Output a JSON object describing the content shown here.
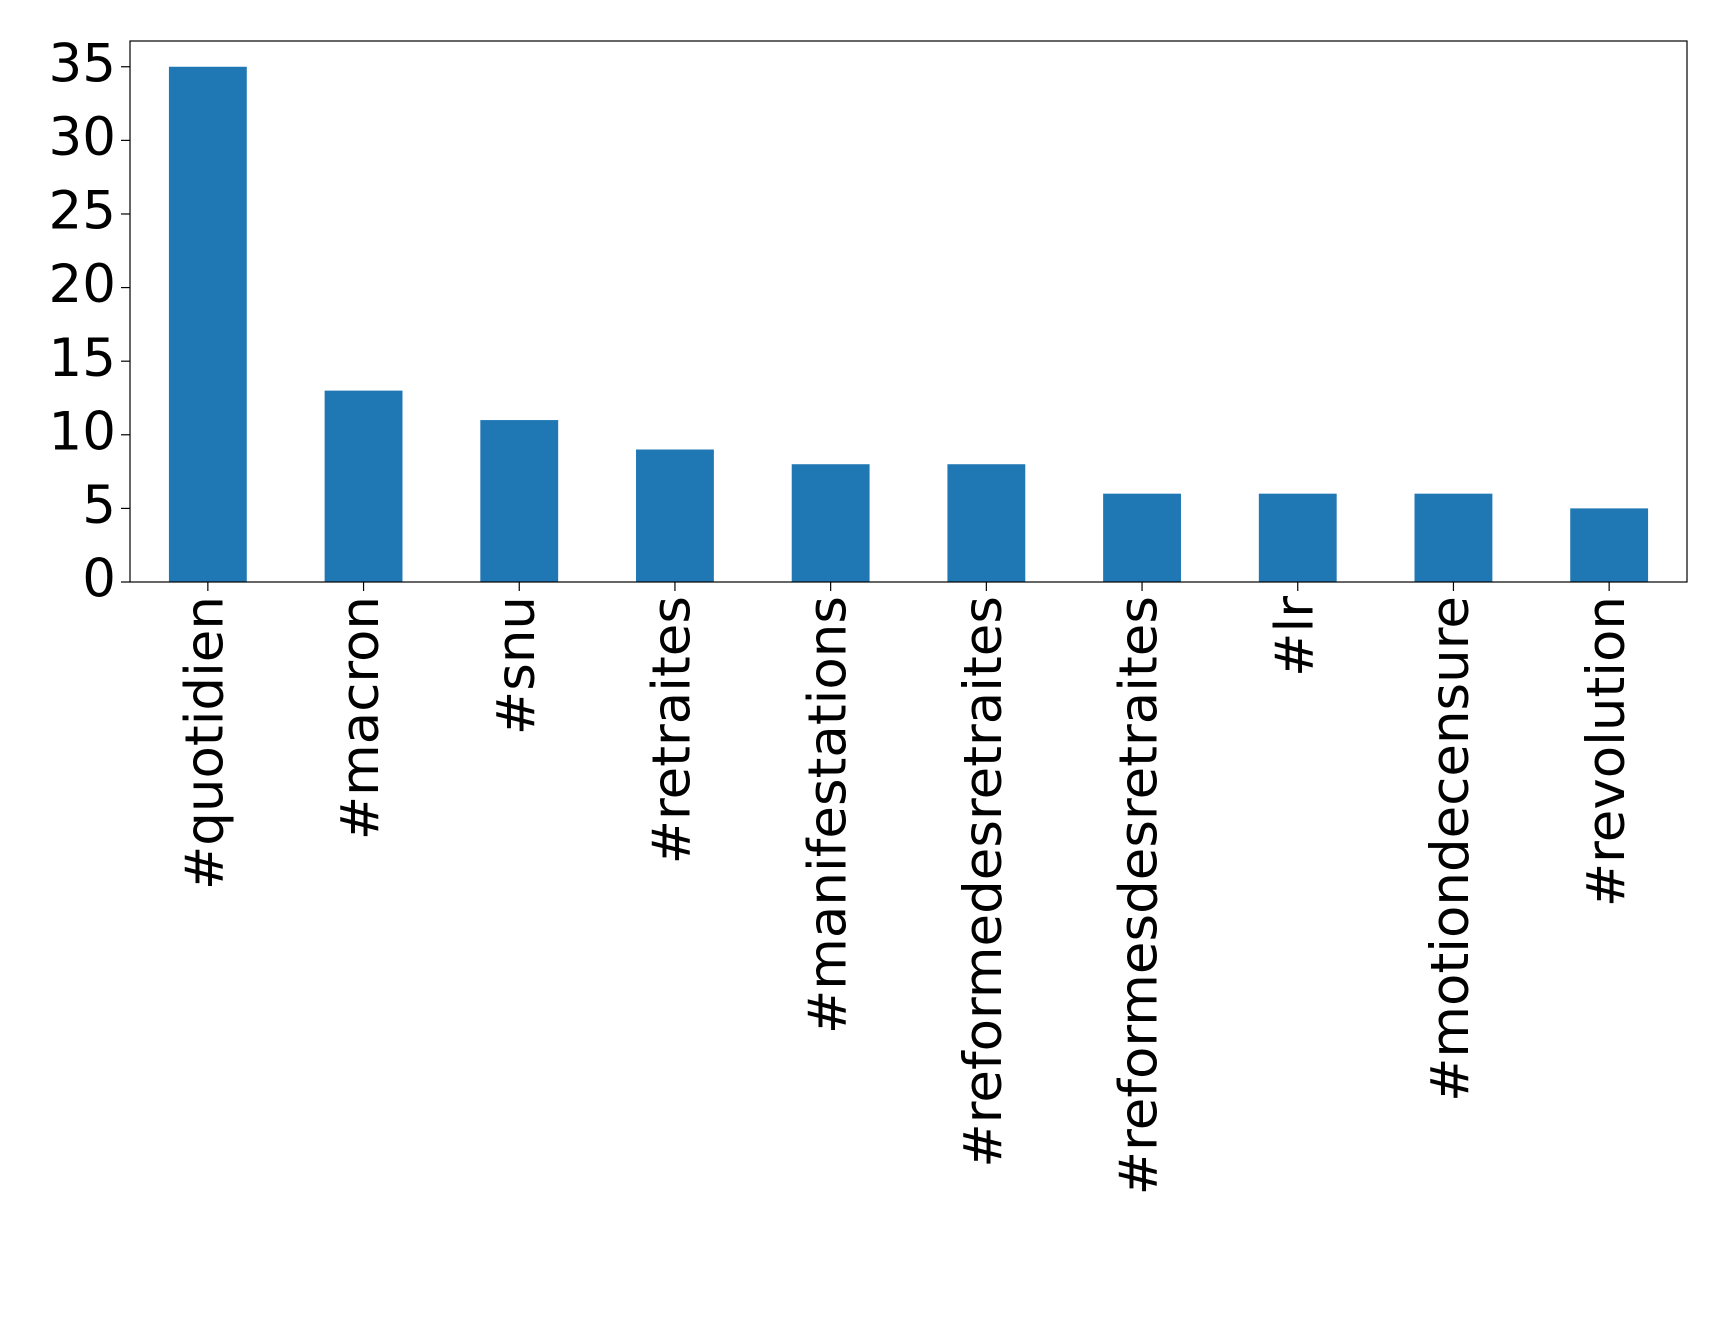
{
  "chart_data": {
    "type": "bar",
    "categories": [
      "#quotidien",
      "#macron",
      "#snu",
      "#retraites",
      "#manifestations",
      "#reformedesretraites",
      "#reformesdesretraites",
      "#lr",
      "#motiondecensure",
      "#revolution"
    ],
    "values": [
      35,
      13,
      11,
      9,
      8,
      8,
      6,
      6,
      6,
      5
    ],
    "color": "#1f77b4",
    "ylim": [
      0,
      36.75
    ],
    "yticks": [
      0,
      5,
      10,
      15,
      20,
      25,
      30,
      35
    ],
    "grid": false
  }
}
